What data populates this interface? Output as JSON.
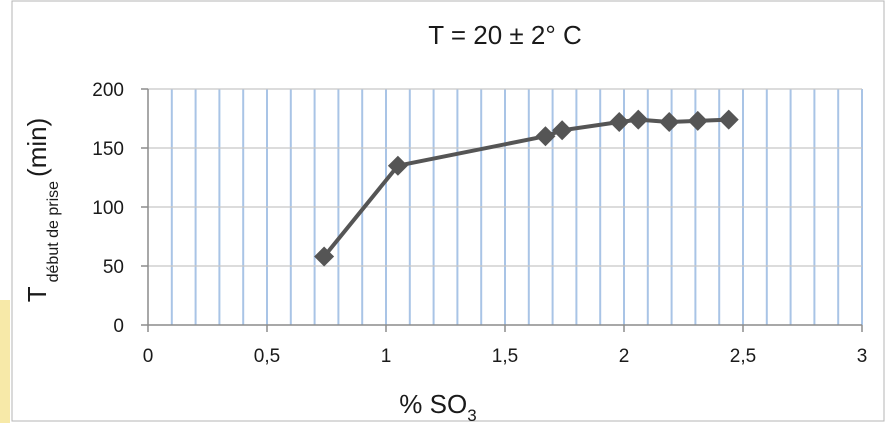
{
  "chart_data": {
    "type": "line",
    "title": "T = 20 ± 2° C",
    "xlabel": {
      "main": "% SO",
      "sub": "3"
    },
    "ylabel": {
      "main": "T",
      "sub": "début de prise",
      "unit": "(min)"
    },
    "xlim": [
      0,
      3
    ],
    "ylim": [
      0,
      200
    ],
    "x_ticks": [
      0,
      0.5,
      1,
      1.5,
      2,
      2.5,
      3
    ],
    "x_tick_labels": [
      "0",
      "0,5",
      "1",
      "1,5",
      "2",
      "2,5",
      "3"
    ],
    "y_ticks": [
      0,
      50,
      100,
      150,
      200
    ],
    "y_tick_labels": [
      "0",
      "50",
      "100",
      "150",
      "200"
    ],
    "grid": "vertical-minor-and-horizontal-major",
    "legend": "none",
    "series": [
      {
        "marker": "diamond",
        "color": "#555555",
        "points": [
          {
            "x": 0.74,
            "y": 58
          },
          {
            "x": 1.05,
            "y": 135
          },
          {
            "x": 1.67,
            "y": 160
          },
          {
            "x": 1.74,
            "y": 165
          },
          {
            "x": 1.98,
            "y": 172
          },
          {
            "x": 2.06,
            "y": 174
          },
          {
            "x": 2.19,
            "y": 172
          },
          {
            "x": 2.31,
            "y": 173
          },
          {
            "x": 2.44,
            "y": 174
          }
        ]
      }
    ],
    "colors": {
      "plot_bg": "#ffffff",
      "grid_vertical": "#a9c4e6",
      "grid_horizontal": "#c8c8c8",
      "axis": "#8c8c8c",
      "side_accent": "#f7e9a8"
    }
  }
}
